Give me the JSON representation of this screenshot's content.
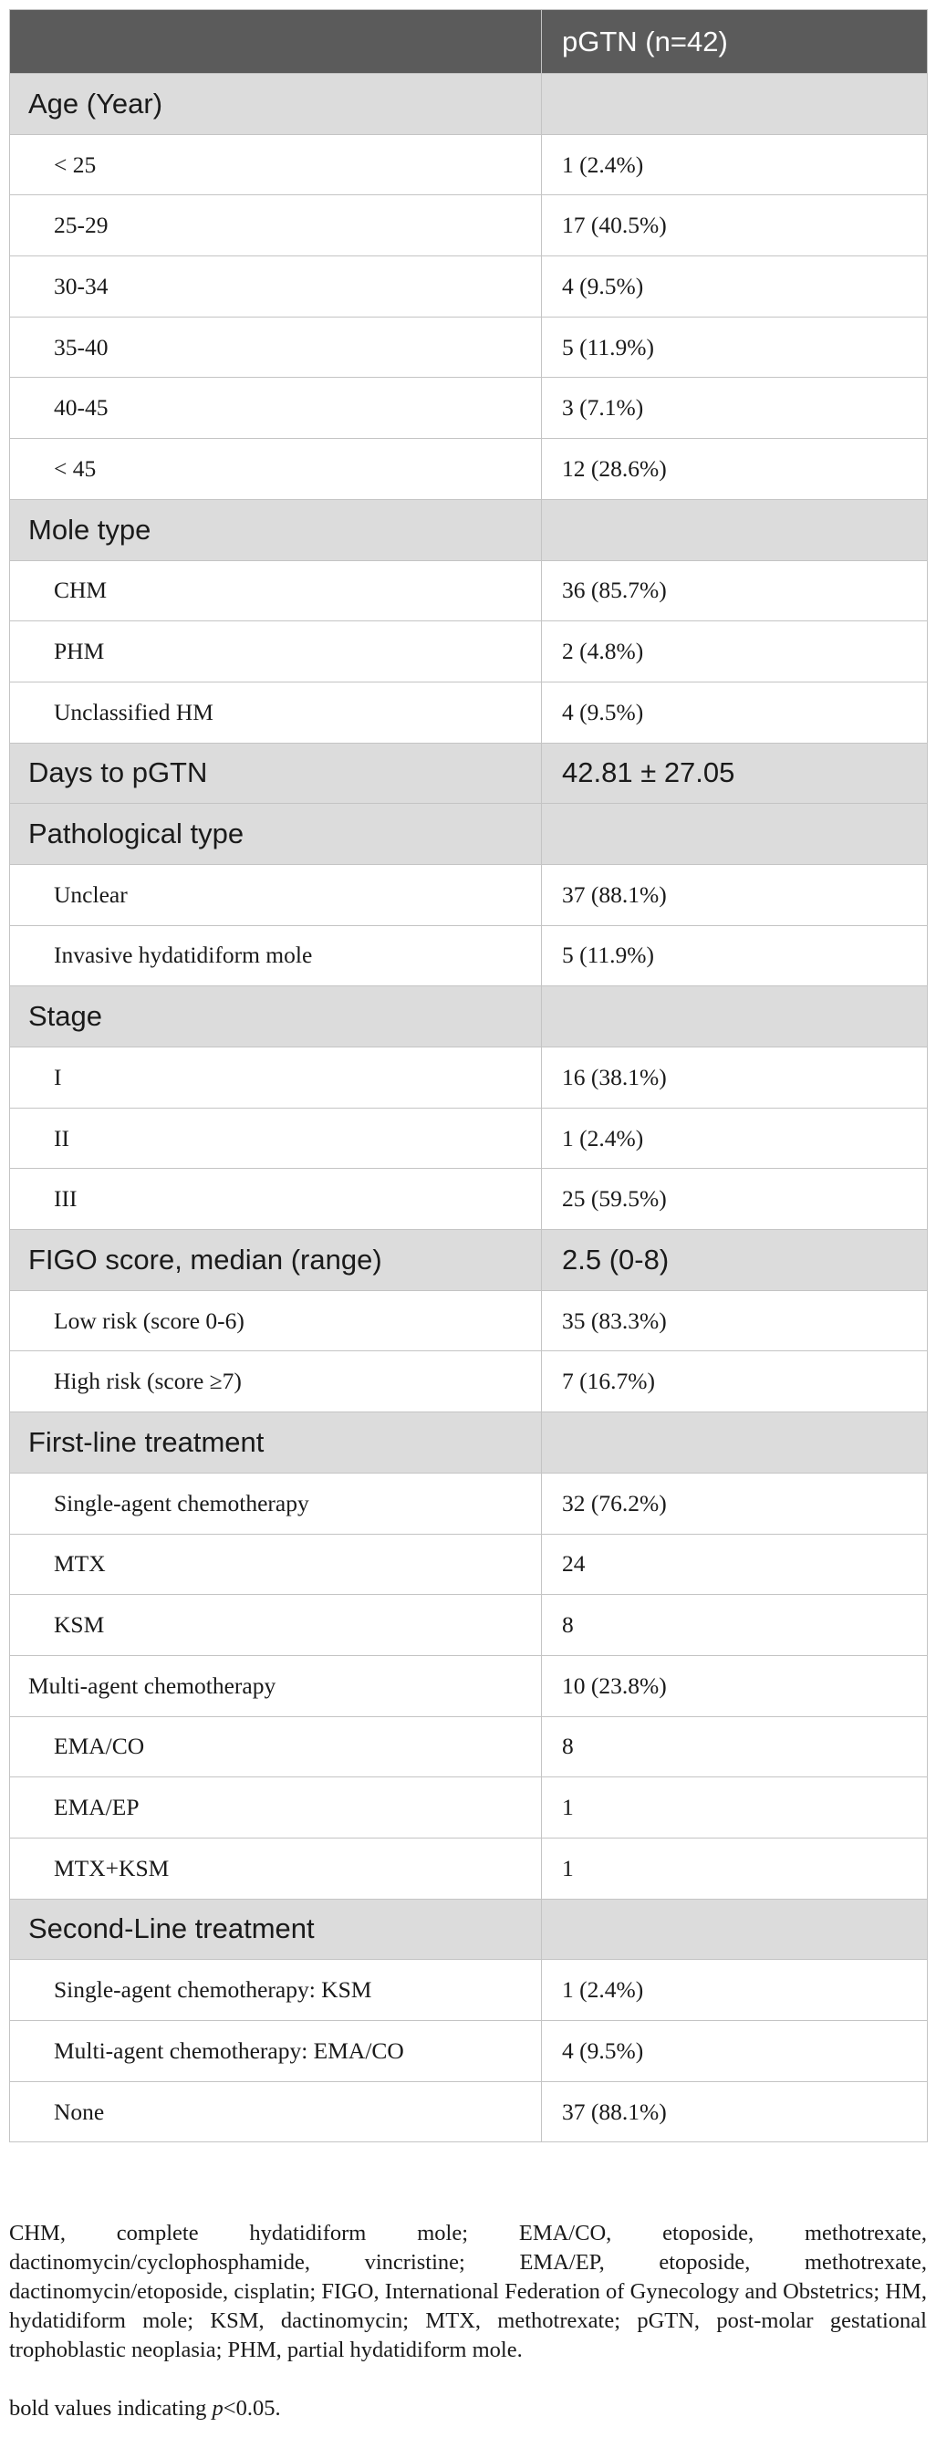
{
  "header": {
    "col1": "",
    "col2": "pGTN (n=42)"
  },
  "rows": [
    {
      "type": "section",
      "label": "Age (Year)",
      "value": ""
    },
    {
      "type": "item",
      "label": "< 25",
      "value": "1 (2.4%)"
    },
    {
      "type": "item",
      "label": "25-29",
      "value": "17 (40.5%)"
    },
    {
      "type": "item",
      "label": "30-34",
      "value": "4 (9.5%)"
    },
    {
      "type": "item",
      "label": "35-40",
      "value": "5 (11.9%)"
    },
    {
      "type": "item",
      "label": "40-45",
      "value": "3 (7.1%)"
    },
    {
      "type": "item",
      "label": "< 45",
      "value": "12 (28.6%)"
    },
    {
      "type": "section",
      "label": "Mole type",
      "value": ""
    },
    {
      "type": "item",
      "label": "CHM",
      "value": "36 (85.7%)"
    },
    {
      "type": "item",
      "label": "PHM",
      "value": "2 (4.8%)"
    },
    {
      "type": "item",
      "label": "Unclassified HM",
      "value": "4 (9.5%)"
    },
    {
      "type": "section",
      "label": "Days to pGTN",
      "value": "42.81 ± 27.05"
    },
    {
      "type": "section",
      "label": "Pathological type",
      "value": ""
    },
    {
      "type": "item",
      "label": "Unclear",
      "value": "37 (88.1%)"
    },
    {
      "type": "item",
      "label": "Invasive hydatidiform mole",
      "value": "5 (11.9%)"
    },
    {
      "type": "section",
      "label": "Stage",
      "value": ""
    },
    {
      "type": "item",
      "label": "I",
      "value": "16 (38.1%)"
    },
    {
      "type": "item",
      "label": "II",
      "value": "1 (2.4%)"
    },
    {
      "type": "item",
      "label": "III",
      "value": "25 (59.5%)"
    },
    {
      "type": "section",
      "label": "FIGO score, median (range)",
      "value": "2.5 (0-8)"
    },
    {
      "type": "item",
      "label": "Low risk (score 0-6)",
      "value": "35 (83.3%)"
    },
    {
      "type": "item",
      "label": "High risk (score ≥7)",
      "value": "7 (16.7%)"
    },
    {
      "type": "section",
      "label": "First-line treatment",
      "value": ""
    },
    {
      "type": "item",
      "label": "Single-agent chemotherapy",
      "value": "32 (76.2%)"
    },
    {
      "type": "item",
      "label": "MTX",
      "value": "24"
    },
    {
      "type": "item",
      "label": "KSM",
      "value": "8"
    },
    {
      "type": "item-flush",
      "label": "Multi-agent chemotherapy",
      "value": "10 (23.8%)"
    },
    {
      "type": "item",
      "label": "EMA/CO",
      "value": "8"
    },
    {
      "type": "item",
      "label": "EMA/EP",
      "value": "1"
    },
    {
      "type": "item",
      "label": "MTX+KSM",
      "value": "1"
    },
    {
      "type": "section",
      "label": "Second-Line treatment",
      "value": ""
    },
    {
      "type": "item",
      "label": "Single-agent chemotherapy: KSM",
      "value": "1 (2.4%)"
    },
    {
      "type": "item",
      "label": "Multi-agent chemotherapy: EMA/CO",
      "value": "4 (9.5%)"
    },
    {
      "type": "item",
      "label": "None",
      "value": "37 (88.1%)"
    }
  ],
  "footnote": {
    "abbreviations": "CHM, complete hydatidiform mole; EMA/CO, etoposide, methotrexate, dactinomycin/cyclophosphamide, vincristine; EMA/EP, etoposide, methotrexate, dactinomycin/etoposide, cisplatin; FIGO, International Federation of Gynecology and Obstetrics; HM, hydatidiform mole; KSM, dactinomycin; MTX, methotrexate; pGTN, post-molar gestational trophoblastic neoplasia; PHM, partial hydatidiform mole.",
    "bold_note_prefix": "bold values indicating ",
    "bold_note_p": "p",
    "bold_note_suffix": "<0.05."
  }
}
